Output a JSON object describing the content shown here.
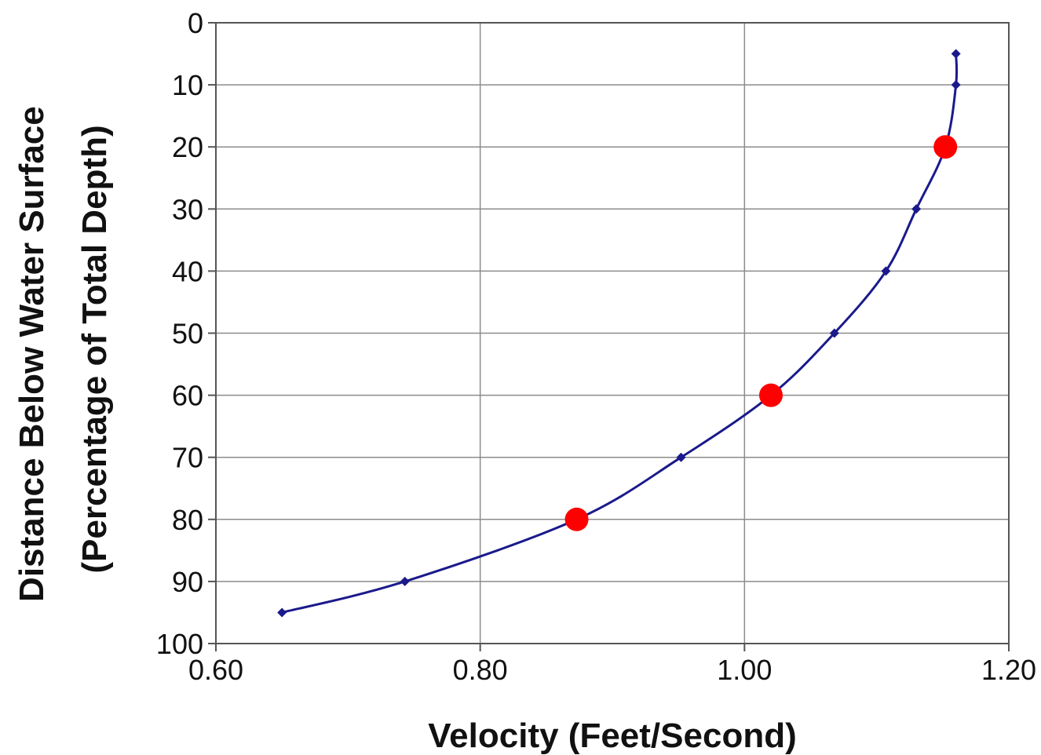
{
  "chart_data": {
    "type": "line",
    "xlabel": "Velocity (Feet/Second)",
    "ylabel": "Distance Below Water Surface (Percentage of Total Depth)",
    "ylabel_lines": [
      "Distance Below Water Surface",
      "(Percentage of Total Depth)"
    ],
    "xlim": [
      0.6,
      1.2
    ],
    "ylim": [
      0,
      100
    ],
    "y_inverted": true,
    "x_ticks": [
      0.6,
      0.8,
      1.0,
      1.2
    ],
    "x_tick_labels": [
      "0.60",
      "0.80",
      "1.00",
      "1.20"
    ],
    "y_ticks": [
      0,
      10,
      20,
      30,
      40,
      50,
      60,
      70,
      80,
      90,
      100
    ],
    "y_tick_labels": [
      "0",
      "10",
      "20",
      "30",
      "40",
      "50",
      "60",
      "70",
      "80",
      "90",
      "100"
    ],
    "grid": true,
    "legend": "none",
    "series": [
      {
        "color": "#1a1a8c",
        "marker": "diamond",
        "x": [
          1.16,
          1.16,
          1.13,
          1.107,
          1.068,
          0.952,
          0.743,
          0.65
        ],
        "y": [
          5,
          10,
          30,
          40,
          50,
          70,
          90,
          95
        ]
      }
    ],
    "highlight_points": {
      "color": "#ff0000",
      "x": [
        1.152,
        1.02,
        0.873
      ],
      "y": [
        20,
        60,
        80
      ]
    },
    "colors": {
      "plot_border": "#555555",
      "grid": "#8c8c8c",
      "text": "#111111"
    }
  }
}
